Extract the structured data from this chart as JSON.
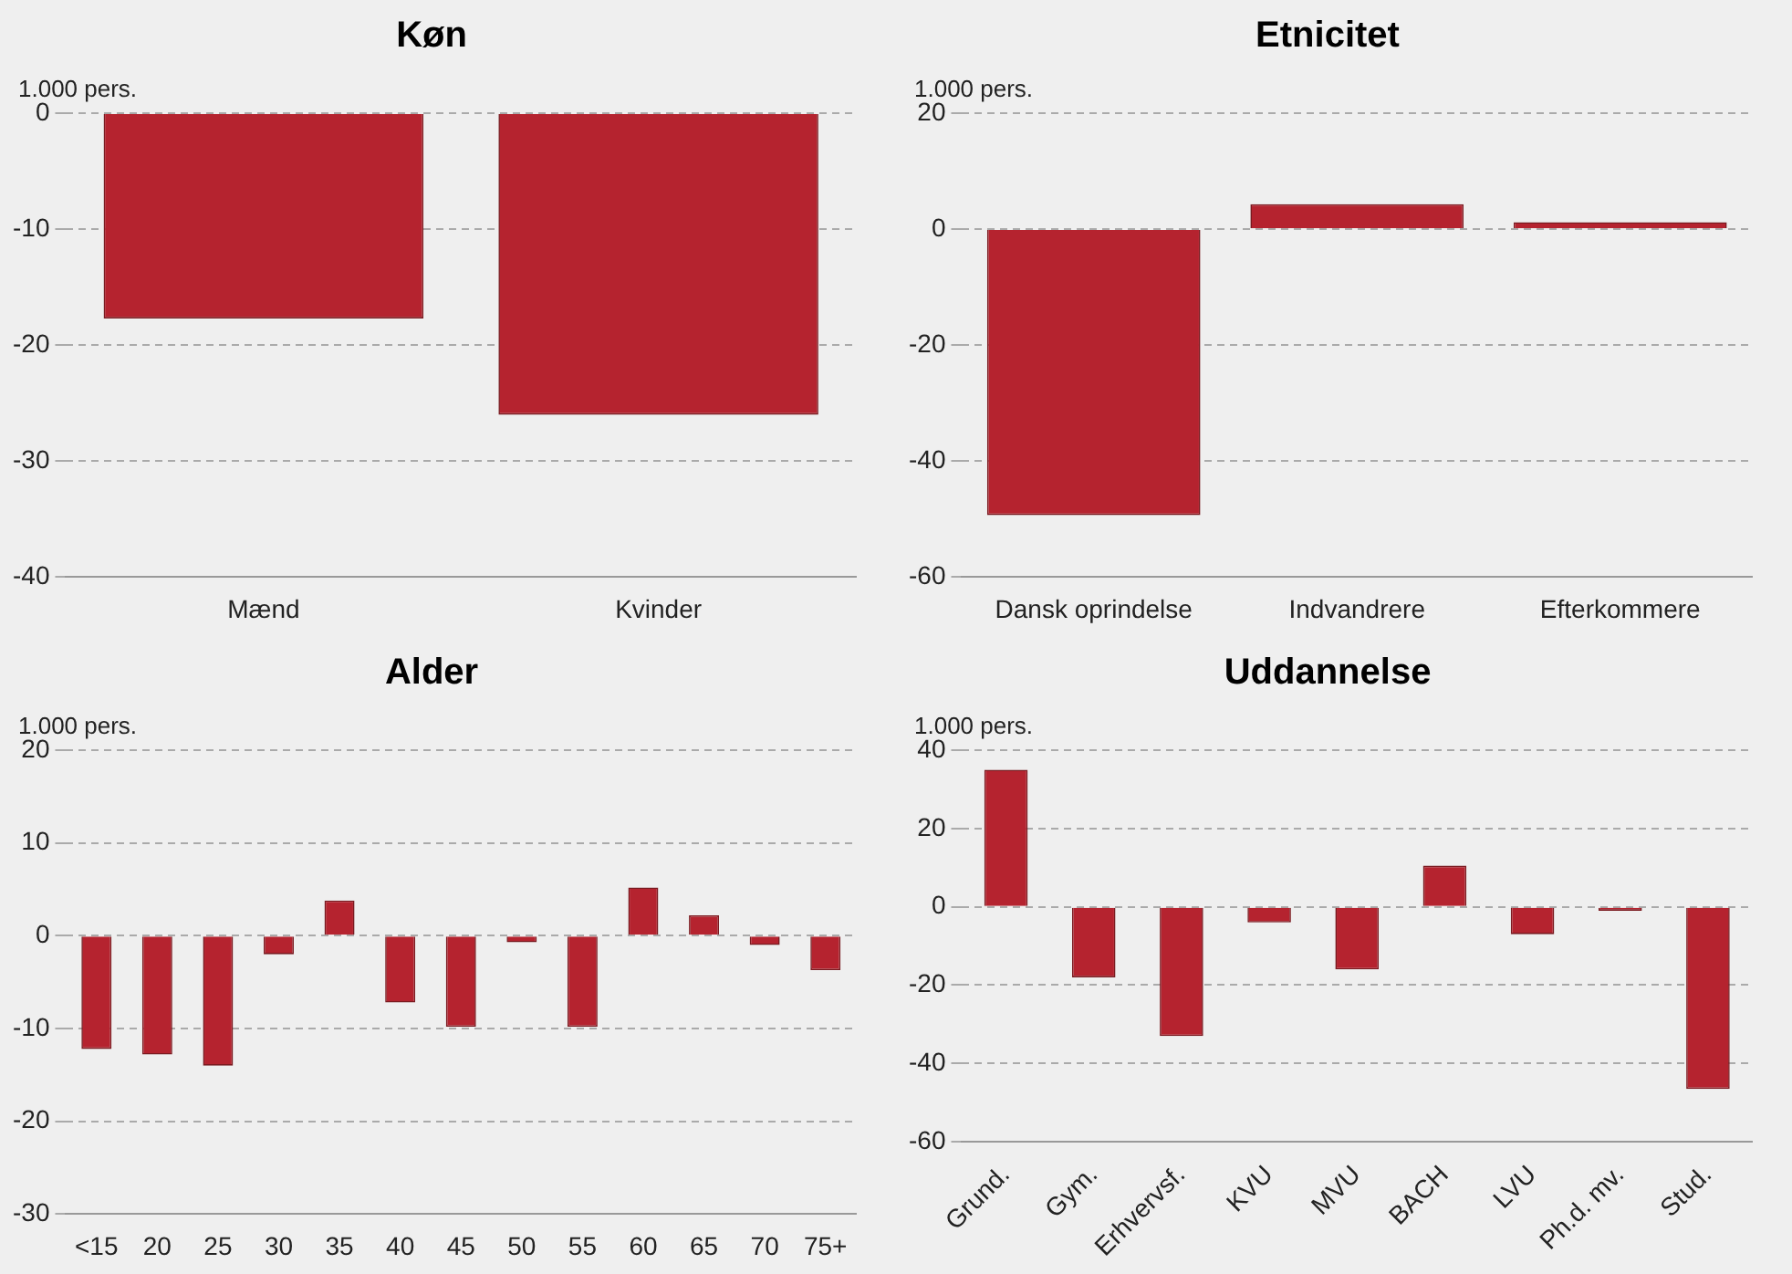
{
  "chart_data": [
    {
      "type": "bar",
      "title": "Køn",
      "ylabel": "1.000 pers.",
      "categories": [
        "Mænd",
        "Kvinder"
      ],
      "values": [
        -17.7,
        -26
      ],
      "color": "#b5232f",
      "ylim": [
        -40,
        0
      ],
      "yticks": [
        -40,
        -30,
        -20,
        -10,
        0
      ],
      "grid": "y",
      "legend": false
    },
    {
      "type": "bar",
      "title": "Etnicitet",
      "ylabel": "1.000 pers.",
      "categories": [
        "Dansk oprindelse",
        "Indvandrere",
        "Efterkommere"
      ],
      "values": [
        -49.3,
        4.3,
        1.2
      ],
      "color": "#b5232f",
      "ylim": [
        -60,
        20
      ],
      "yticks": [
        -60,
        -40,
        -20,
        0,
        20
      ],
      "grid": "y",
      "legend": false
    },
    {
      "type": "bar",
      "title": "Alder",
      "ylabel": "1.000 pers.",
      "categories": [
        "<15",
        "20",
        "25",
        "30",
        "35",
        "40",
        "45",
        "50",
        "55",
        "60",
        "65",
        "70",
        "75+"
      ],
      "values": [
        -12.2,
        -12.8,
        -14,
        -2,
        3.8,
        -7.2,
        -9.8,
        -0.7,
        -9.8,
        5.2,
        2.2,
        -1,
        -3.7
      ],
      "color": "#b5232f",
      "ylim": [
        -30,
        20
      ],
      "yticks": [
        -30,
        -20,
        -10,
        0,
        10,
        20
      ],
      "grid": "y",
      "legend": false
    },
    {
      "type": "bar",
      "title": "Uddannelse",
      "ylabel": "1.000 pers.",
      "categories": [
        "Grund.",
        "Gym.",
        "Erhvervsf.",
        "KVU",
        "MVU",
        "BACH",
        "LVU",
        "Ph.d. mv.",
        "Stud."
      ],
      "values": [
        35,
        -18,
        -33,
        -4,
        -16,
        10.5,
        -7,
        -1,
        -46.5
      ],
      "color": "#b5232f",
      "ylim": [
        -60,
        40
      ],
      "yticks": [
        -60,
        -40,
        -20,
        0,
        20,
        40
      ],
      "grid": "y",
      "legend": false
    }
  ]
}
